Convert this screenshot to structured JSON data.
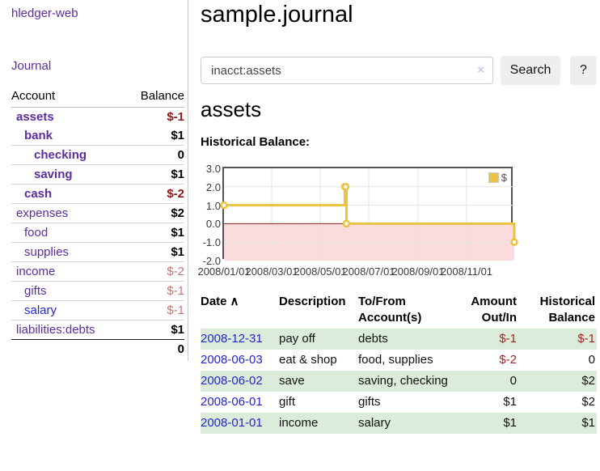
{
  "colors": {
    "link_purple": "#5b2da0",
    "link_blue": "#2626d8",
    "neg_dark_red": "#8f1a1a",
    "neg_light_red": "#c17878",
    "table_neg_red": "#9d2424",
    "row_green": "#dcecdb",
    "series_gold": "#edc240",
    "negative_region_pink": "#fbdcdc",
    "zero_line_red": "#8b1a1a",
    "plot_border_gray": "#545454"
  },
  "sidebar": {
    "app_title": "hledger-web",
    "nav_journal": "Journal",
    "table_headers": {
      "account": "Account",
      "balance": "Balance"
    },
    "accounts": [
      {
        "name": "assets",
        "indent": 0,
        "bold": true,
        "link_color": "purple",
        "balance": "$-1",
        "balance_style": "neg-bold"
      },
      {
        "name": "bank",
        "indent": 1,
        "bold": true,
        "link_color": "purple",
        "balance": "$1",
        "balance_style": ""
      },
      {
        "name": "checking",
        "indent": 2,
        "bold": true,
        "link_color": "purple",
        "balance": "0",
        "balance_style": ""
      },
      {
        "name": "saving",
        "indent": 2,
        "bold": true,
        "link_color": "purple",
        "balance": "$1",
        "balance_style": ""
      },
      {
        "name": "cash",
        "indent": 1,
        "bold": true,
        "link_color": "purple",
        "balance": "$-2",
        "balance_style": "neg-bold"
      },
      {
        "name": "expenses",
        "indent": 0,
        "bold": false,
        "link_color": "purple",
        "balance": "$2",
        "balance_style": ""
      },
      {
        "name": "food",
        "indent": 1,
        "bold": false,
        "link_color": "purple",
        "balance": "$1",
        "balance_style": ""
      },
      {
        "name": "supplies",
        "indent": 1,
        "bold": false,
        "link_color": "purple",
        "balance": "$1",
        "balance_style": ""
      },
      {
        "name": "income",
        "indent": 0,
        "bold": false,
        "link_color": "purple",
        "balance": "$-2",
        "balance_style": "neg-light"
      },
      {
        "name": "gifts",
        "indent": 1,
        "bold": false,
        "link_color": "purple",
        "balance": "$-1",
        "balance_style": "neg-light"
      },
      {
        "name": "salary",
        "indent": 1,
        "bold": false,
        "link_color": "blue",
        "balance": "$-1",
        "balance_style": "neg-light"
      },
      {
        "name": "liabilities:debts",
        "indent": 0,
        "bold": false,
        "link_color": "purple",
        "balance": "$1",
        "balance_style": ""
      }
    ],
    "total": "0"
  },
  "header": {
    "title": "sample.journal"
  },
  "search": {
    "value": "inacct:assets",
    "clear_icon": "×",
    "button_label": "Search",
    "help_label": "?"
  },
  "account_page": {
    "heading": "assets",
    "chart_label": "Historical Balance:"
  },
  "chart_data": {
    "type": "line",
    "step": true,
    "title": "Historical Balance",
    "series": [
      {
        "name": "$",
        "color": "#edc240",
        "points": [
          {
            "date": "2008-01-01",
            "value": 1
          },
          {
            "date": "2008-06-01",
            "value": 2
          },
          {
            "date": "2008-06-02",
            "value": 2
          },
          {
            "date": "2008-06-03",
            "value": 0
          },
          {
            "date": "2008-12-31",
            "value": -1
          }
        ]
      }
    ],
    "xlim": [
      "2008-01-01",
      "2008-12-31"
    ],
    "ylim": [
      -2,
      3
    ],
    "x_ticks": [
      {
        "date": "2008-01-01",
        "label": "2008/01/01"
      },
      {
        "date": "2008-03-01",
        "label": "2008/03/01"
      },
      {
        "date": "2008-05-01",
        "label": "2008/05/01"
      },
      {
        "date": "2008-07-01",
        "label": "2008/07/01"
      },
      {
        "date": "2008-09-01",
        "label": "2008/09/01"
      },
      {
        "date": "2008-11-01",
        "label": "2008/11/01"
      }
    ],
    "y_ticks": [
      "3.0",
      "2.0",
      "1.0",
      "0.0",
      "-1.0",
      "-2.0"
    ],
    "grid": true,
    "legend": {
      "label": "$",
      "position": "top-right"
    },
    "negative_region": true,
    "marker": "hollow-circle"
  },
  "register": {
    "headers": {
      "date": "Date",
      "date_sort_icon": "∧",
      "description": "Description",
      "accounts": "To/From Account(s)",
      "amount": "Amount Out/In",
      "balance": "Historical Balance"
    },
    "rows": [
      {
        "date": "2008-12-31",
        "description": "pay off",
        "accounts": "debts",
        "amount": "$-1",
        "amount_neg": true,
        "balance": "$-1",
        "balance_neg": true,
        "shaded": true
      },
      {
        "date": "2008-06-03",
        "description": "eat & shop",
        "accounts": "food, supplies",
        "amount": "$-2",
        "amount_neg": true,
        "balance": "0",
        "balance_neg": false,
        "shaded": false
      },
      {
        "date": "2008-06-02",
        "description": "save",
        "accounts": "saving, checking",
        "amount": "0",
        "amount_neg": false,
        "balance": "$2",
        "balance_neg": false,
        "shaded": true
      },
      {
        "date": "2008-06-01",
        "description": "gift",
        "accounts": "gifts",
        "amount": "$1",
        "amount_neg": false,
        "balance": "$2",
        "balance_neg": false,
        "shaded": false
      },
      {
        "date": "2008-01-01",
        "description": "income",
        "accounts": "salary",
        "amount": "$1",
        "amount_neg": false,
        "balance": "$1",
        "balance_neg": false,
        "shaded": true
      }
    ]
  }
}
